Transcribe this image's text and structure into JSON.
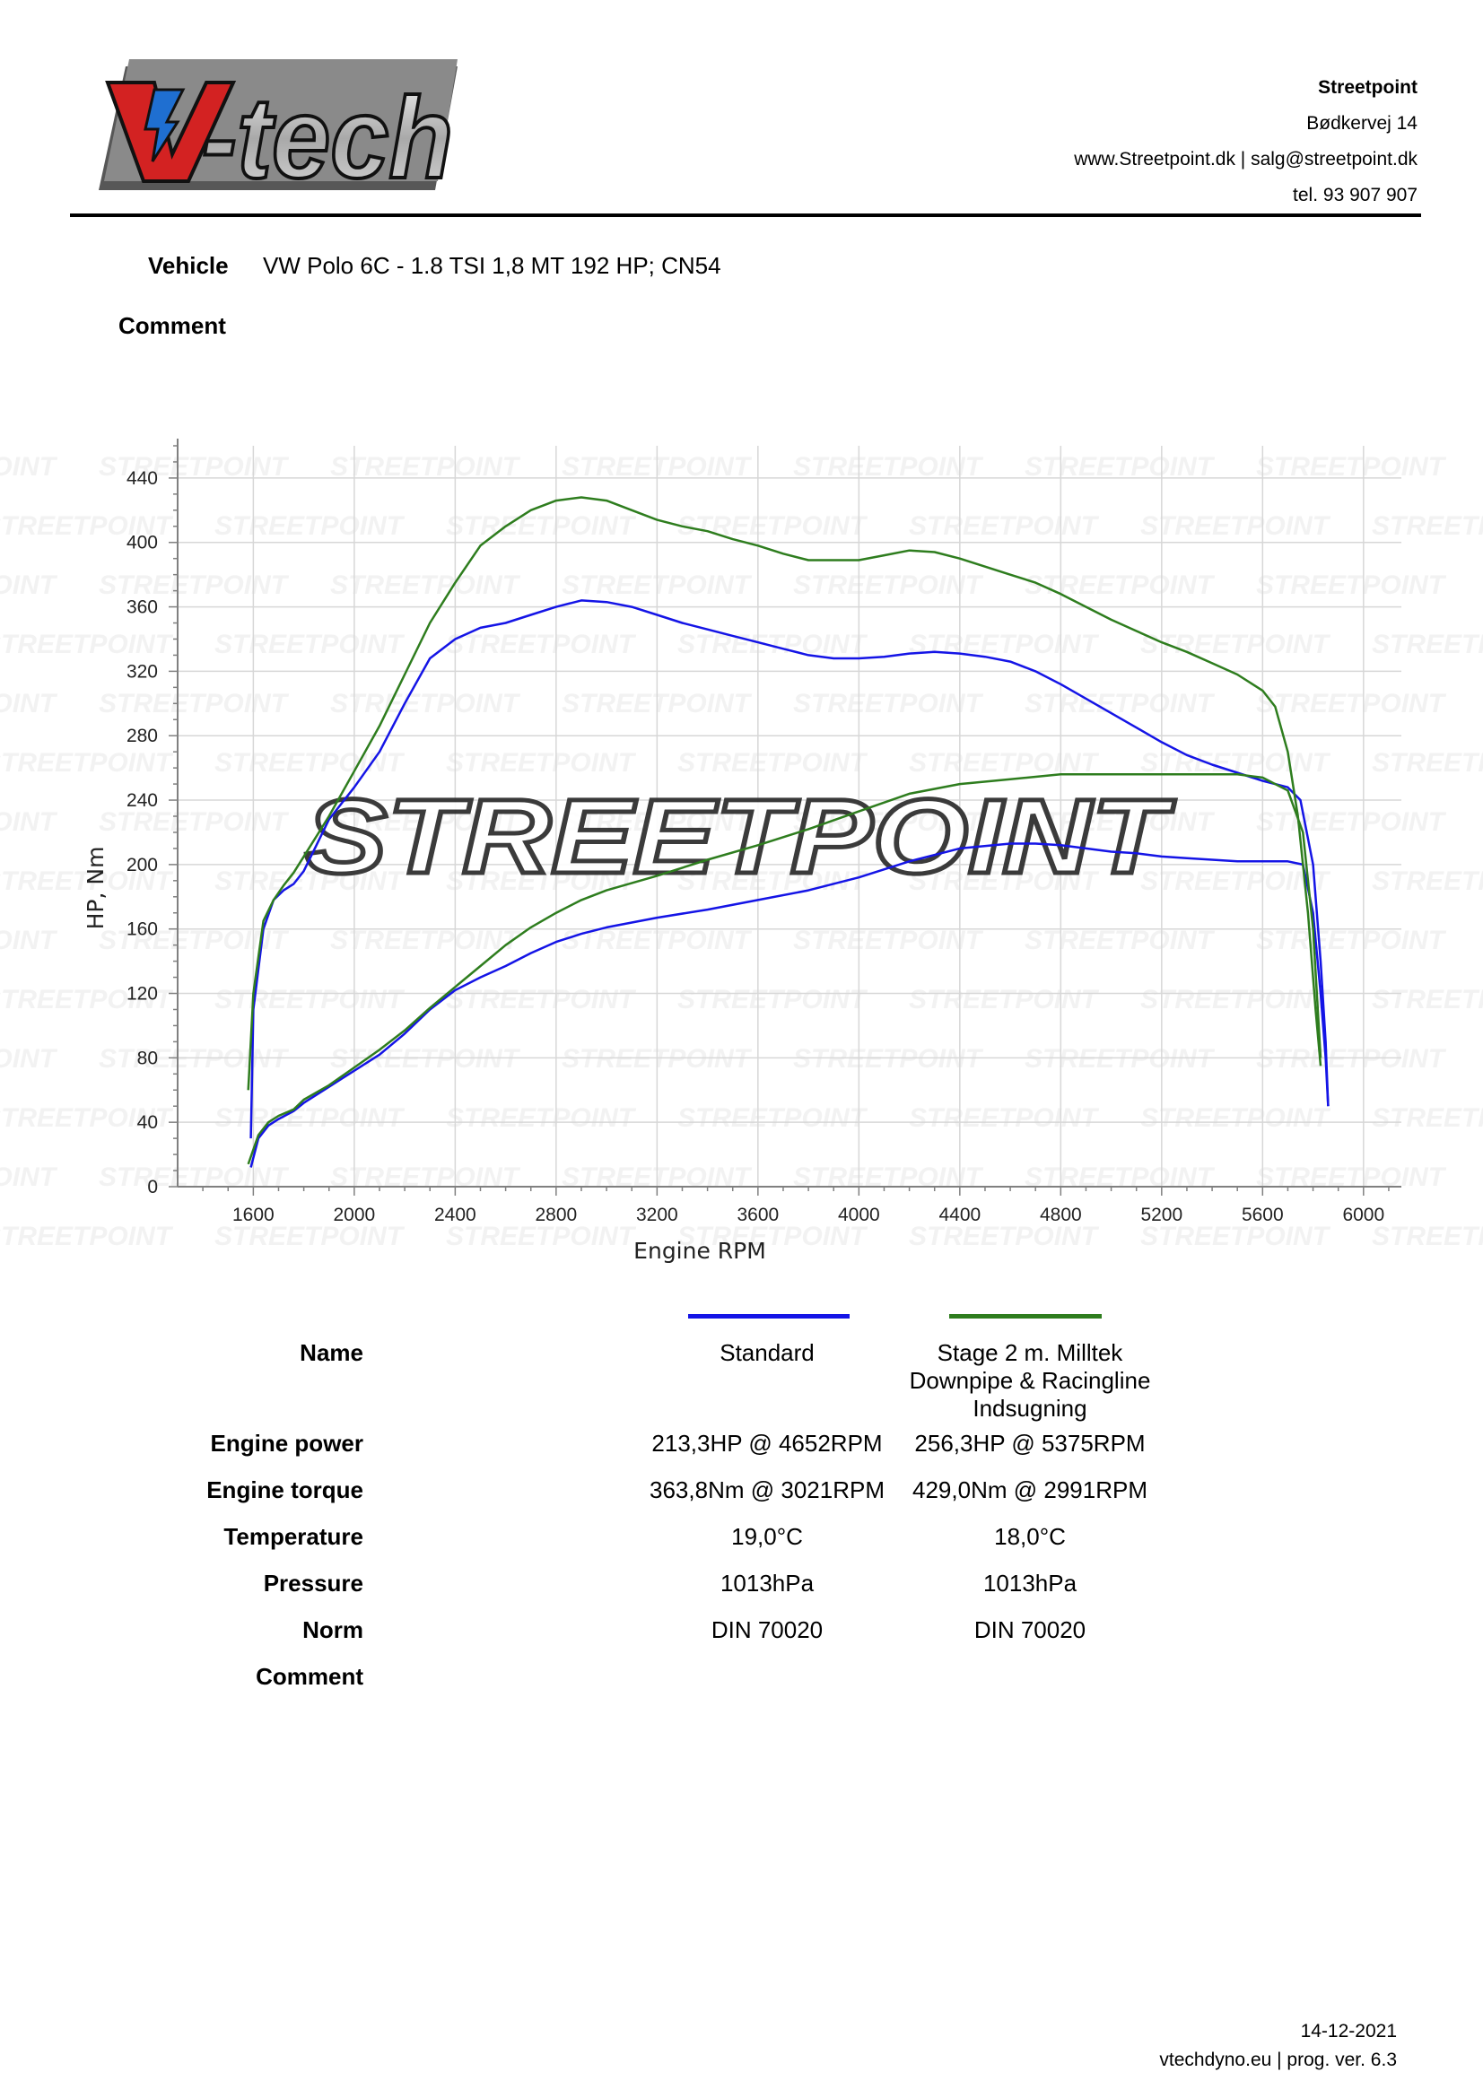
{
  "header": {
    "logo_text": "V-tech",
    "company": {
      "name": "Streetpoint",
      "address": "Bødkervej 14",
      "web_email": "www.Streetpoint.dk | salg@streetpoint.dk",
      "phone": "tel. 93 907 907"
    }
  },
  "vehicle": {
    "label": "Vehicle",
    "value": "VW Polo 6C - 1.8 TSI 1,8 MT 192 HP; CN54"
  },
  "comment": {
    "label": "Comment",
    "value": ""
  },
  "watermark": "STREETPOINT",
  "colors": {
    "standard": "#1414e6",
    "stage2": "#2e7d1e",
    "grid": "#d7d7d7",
    "axis": "#808080"
  },
  "chart_data": {
    "type": "line",
    "xlabel": "Engine RPM",
    "ylabel": "HP, Nm",
    "xlim": [
      1300,
      6150
    ],
    "ylim": [
      0,
      460
    ],
    "xticks": [
      1600,
      2000,
      2400,
      2800,
      3200,
      3600,
      4000,
      4400,
      4800,
      5200,
      5600,
      6000
    ],
    "yticks": [
      0,
      40,
      80,
      120,
      160,
      200,
      240,
      280,
      320,
      360,
      400,
      440
    ],
    "grid": true,
    "series": [
      {
        "name": "Standard",
        "metric": "torque",
        "x": [
          1590,
          1600,
          1640,
          1680,
          1720,
          1760,
          1800,
          1850,
          1900,
          2000,
          2100,
          2200,
          2300,
          2400,
          2500,
          2600,
          2700,
          2800,
          2900,
          3000,
          3100,
          3200,
          3300,
          3400,
          3500,
          3600,
          3700,
          3800,
          3900,
          4000,
          4100,
          4200,
          4300,
          4400,
          4500,
          4600,
          4700,
          4800,
          4900,
          5000,
          5100,
          5200,
          5300,
          5400,
          5500,
          5600,
          5700,
          5750,
          5800,
          5830,
          5850,
          5860
        ],
        "y": [
          30,
          110,
          160,
          178,
          184,
          188,
          196,
          212,
          228,
          248,
          270,
          300,
          328,
          340,
          347,
          350,
          355,
          360,
          364,
          363,
          360,
          355,
          350,
          346,
          342,
          338,
          334,
          330,
          328,
          328,
          329,
          331,
          332,
          331,
          329,
          326,
          320,
          312,
          303,
          294,
          285,
          276,
          268,
          262,
          257,
          252,
          248,
          240,
          200,
          140,
          90,
          50
        ]
      },
      {
        "name": "Standard",
        "metric": "power",
        "x": [
          1590,
          1620,
          1660,
          1700,
          1760,
          1800,
          1900,
          2000,
          2100,
          2200,
          2300,
          2400,
          2500,
          2600,
          2700,
          2800,
          2900,
          3000,
          3200,
          3400,
          3600,
          3800,
          4000,
          4200,
          4400,
          4600,
          4700,
          4800,
          4900,
          5000,
          5100,
          5200,
          5300,
          5400,
          5500,
          5600,
          5700,
          5760,
          5800,
          5830,
          5850,
          5860
        ],
        "y": [
          12,
          30,
          38,
          42,
          47,
          52,
          62,
          72,
          82,
          95,
          110,
          122,
          130,
          137,
          145,
          152,
          157,
          161,
          167,
          172,
          178,
          184,
          192,
          202,
          210,
          213,
          213,
          212,
          210,
          208,
          207,
          205,
          204,
          203,
          202,
          202,
          202,
          200,
          170,
          120,
          80,
          50
        ]
      },
      {
        "name": "Stage 2 m. Milltek Downpipe & Racingline Indsugning",
        "metric": "torque",
        "x": [
          1580,
          1600,
          1640,
          1680,
          1720,
          1760,
          1800,
          1900,
          2000,
          2100,
          2200,
          2300,
          2400,
          2500,
          2600,
          2700,
          2800,
          2900,
          3000,
          3100,
          3200,
          3300,
          3400,
          3500,
          3600,
          3700,
          3800,
          3900,
          4000,
          4100,
          4200,
          4300,
          4400,
          4500,
          4600,
          4700,
          4800,
          4900,
          5000,
          5100,
          5200,
          5300,
          5400,
          5500,
          5600,
          5650,
          5700,
          5740,
          5780,
          5810,
          5830
        ],
        "y": [
          60,
          120,
          165,
          178,
          187,
          195,
          205,
          230,
          258,
          286,
          318,
          350,
          375,
          398,
          410,
          420,
          426,
          428,
          426,
          420,
          414,
          410,
          407,
          402,
          398,
          393,
          389,
          389,
          389,
          392,
          395,
          394,
          390,
          385,
          380,
          375,
          368,
          360,
          352,
          345,
          338,
          332,
          325,
          318,
          308,
          298,
          270,
          230,
          170,
          110,
          75
        ]
      },
      {
        "name": "Stage 2 m. Milltek Downpipe & Racingline Indsugning",
        "metric": "power",
        "x": [
          1580,
          1620,
          1660,
          1700,
          1760,
          1800,
          1900,
          2000,
          2100,
          2200,
          2300,
          2400,
          2500,
          2600,
          2700,
          2800,
          2900,
          3000,
          3200,
          3400,
          3600,
          3800,
          4000,
          4200,
          4400,
          4600,
          4800,
          5000,
          5200,
          5375,
          5500,
          5600,
          5700,
          5760,
          5800,
          5830
        ],
        "y": [
          14,
          32,
          40,
          44,
          48,
          54,
          63,
          74,
          85,
          97,
          111,
          124,
          137,
          150,
          161,
          170,
          178,
          184,
          193,
          203,
          212,
          222,
          233,
          244,
          250,
          253,
          256,
          256,
          256,
          256,
          256,
          254,
          246,
          220,
          160,
          80
        ]
      }
    ]
  },
  "legend": {
    "name_label": "Name",
    "series_names": [
      "Standard",
      "Stage 2 m. Milltek Downpipe & Racingline Indsugning"
    ]
  },
  "table": {
    "rows": [
      {
        "label": "Engine power",
        "standard": "213,3HP @ 4652RPM",
        "stage2": "256,3HP @ 5375RPM"
      },
      {
        "label": "Engine torque",
        "standard": "363,8Nm @ 3021RPM",
        "stage2": "429,0Nm @ 2991RPM"
      },
      {
        "label": "Temperature",
        "standard": "19,0°C",
        "stage2": "18,0°C"
      },
      {
        "label": "Pressure",
        "standard": "1013hPa",
        "stage2": "1013hPa"
      },
      {
        "label": "Norm",
        "standard": "DIN 70020",
        "stage2": "DIN 70020"
      },
      {
        "label": "Comment",
        "standard": "",
        "stage2": ""
      }
    ]
  },
  "footer": {
    "date": "14-12-2021",
    "program": "vtechdyno.eu | prog. ver. 6.3"
  }
}
